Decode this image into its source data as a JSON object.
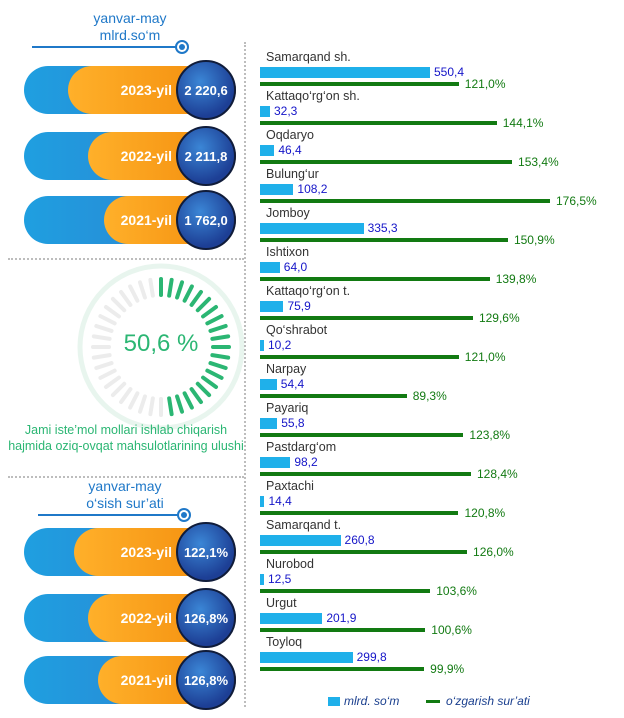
{
  "top": {
    "header_line1": "yanvar-may",
    "header_line2": "mlrd.so‘m",
    "items": [
      {
        "year": "2023-yil",
        "value": "2 220,6"
      },
      {
        "year": "2022-yil",
        "value": "2 211,8"
      },
      {
        "year": "2021-yil",
        "value": "1 762,0"
      }
    ]
  },
  "gauge": {
    "value": "50,6 %",
    "fraction": 0.506,
    "caption": "Jami iste’mol mollari ishlab chiqarish hajmida oziq-ovqat mahsulotlarining ulushi"
  },
  "bottom": {
    "header_line1": "yanvar-may",
    "header_line2": "o‘sish sur’ati",
    "items": [
      {
        "year": "2023-yil",
        "value": "122,1%"
      },
      {
        "year": "2022-yil",
        "value": "126,8%"
      },
      {
        "year": "2021-yil",
        "value": "126,8%"
      }
    ]
  },
  "colors": {
    "blue_bar": "#1fb0ea",
    "green_bar": "#127a12",
    "gauge_green": "#2bb673"
  },
  "chart_data": {
    "type": "bar",
    "categories": [
      "Samarqand sh.",
      "Kattaqo‘rg‘on sh.",
      "Oqdaryo",
      "Bulung‘ur",
      "Jomboy",
      "Ishtixon",
      "Kattaqo‘rg‘on t.",
      "Qo‘shrabot",
      "Narpay",
      "Payariq",
      "Pastdarg‘om",
      "Paxtachi",
      "Samarqand t.",
      "Nurobod",
      "Urgut",
      "Toyloq"
    ],
    "series": [
      {
        "name": "mlrd. so‘m",
        "values": [
          550.4,
          32.3,
          46.4,
          108.2,
          335.3,
          64.0,
          75.9,
          10.2,
          54.4,
          55.8,
          98.2,
          14.4,
          260.8,
          12.5,
          201.9,
          299.8
        ],
        "labels": [
          "550,4",
          "32,3",
          "46,4",
          "108,2",
          "335,3",
          "64,0",
          "75,9",
          "10,2",
          "54,4",
          "55,8",
          "98,2",
          "14,4",
          "260,8",
          "12,5",
          "201,9",
          "299,8"
        ]
      },
      {
        "name": "o‘zgarish sur’ati",
        "values": [
          121.0,
          144.1,
          153.4,
          176.5,
          150.9,
          139.8,
          129.6,
          121.0,
          89.3,
          123.8,
          128.4,
          120.8,
          126.0,
          103.6,
          100.6,
          99.9
        ],
        "labels": [
          "121,0%",
          "144,1%",
          "153,4%",
          "176,5%",
          "150,9%",
          "139,8%",
          "129,6%",
          "121,0%",
          "89,3%",
          "123,8%",
          "128,4%",
          "120,8%",
          "126,0%",
          "103,6%",
          "100,6%",
          "99,9%"
        ]
      }
    ],
    "legend_position": "bottom"
  }
}
